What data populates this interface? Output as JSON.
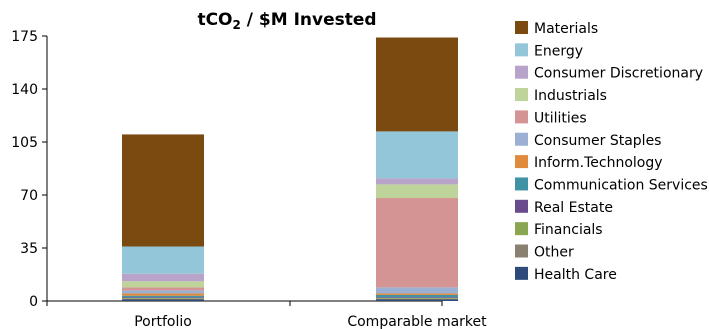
{
  "chart_data": {
    "type": "bar",
    "stacked": true,
    "title": "tCO2 / $M Invested",
    "title_parts": {
      "pre": "tCO",
      "sub": "2",
      "post": " / $M Invested"
    },
    "categories": [
      "Portfolio",
      "Comparable market"
    ],
    "ylim": [
      0,
      175
    ],
    "yticks": [
      0,
      35,
      70,
      105,
      140,
      175
    ],
    "ytick_labels": [
      "0",
      "35",
      "70",
      "105",
      "140",
      "175"
    ],
    "grid": false,
    "legend_position": "right",
    "series": [
      {
        "name": "Health Care",
        "color": "#2e4a7b",
        "values": [
          1,
          1
        ]
      },
      {
        "name": "Other",
        "color": "#8a8070",
        "values": [
          0.5,
          0.5
        ]
      },
      {
        "name": "Financials",
        "color": "#8aa650",
        "values": [
          0.5,
          0.5
        ]
      },
      {
        "name": "Real Estate",
        "color": "#6a4c8c",
        "values": [
          0.5,
          0.5
        ]
      },
      {
        "name": "Communication Services",
        "color": "#3f93a5",
        "values": [
          1,
          1.5
        ]
      },
      {
        "name": "Inform.Technology",
        "color": "#e08a3c",
        "values": [
          1.5,
          1
        ]
      },
      {
        "name": "Consumer Staples",
        "color": "#9cb0d4",
        "values": [
          2,
          4
        ]
      },
      {
        "name": "Utilities",
        "color": "#d49494",
        "values": [
          2,
          59
        ]
      },
      {
        "name": "Industrials",
        "color": "#bed49a",
        "values": [
          4,
          9
        ]
      },
      {
        "name": "Consumer Discretionary",
        "color": "#b8a4c8",
        "values": [
          5,
          4
        ]
      },
      {
        "name": "Energy",
        "color": "#93c6d8",
        "values": [
          18,
          31
        ]
      },
      {
        "name": "Materials",
        "color": "#7a4a10",
        "values": [
          74,
          62
        ]
      }
    ],
    "legend_order": [
      "Materials",
      "Energy",
      "Consumer Discretionary",
      "Industrials",
      "Utilities",
      "Consumer Staples",
      "Inform.Technology",
      "Communication Services",
      "Real Estate",
      "Financials",
      "Other",
      "Health Care"
    ]
  }
}
